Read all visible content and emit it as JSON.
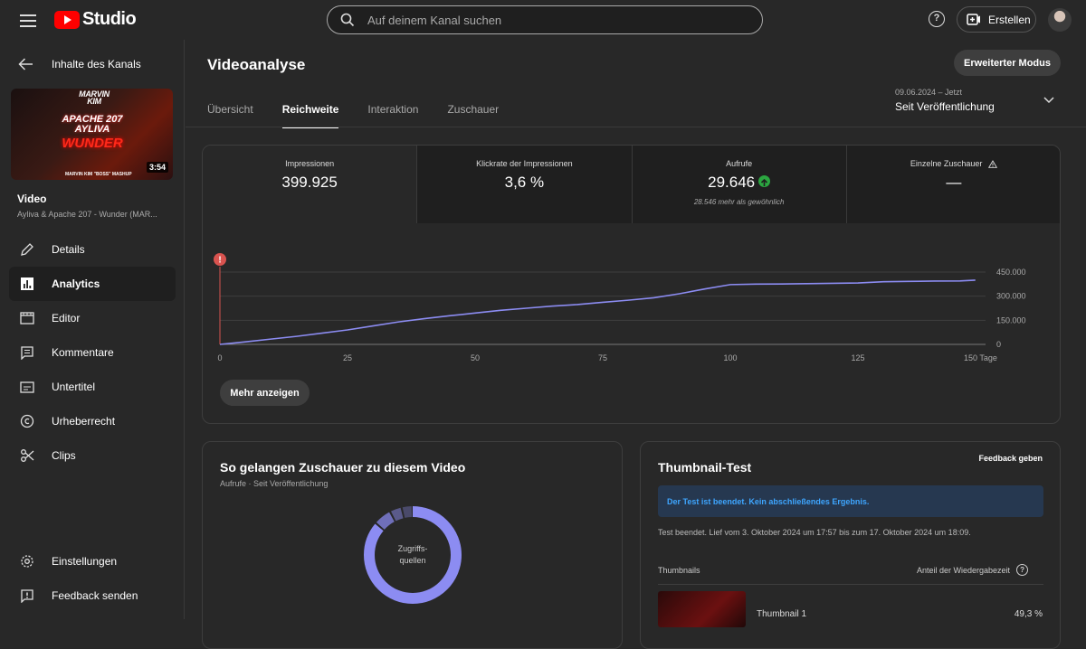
{
  "app": {
    "logo_text": "Studio",
    "search_placeholder": "Auf deinem Kanal suchen",
    "create_label": "Erstellen",
    "help_label": "?"
  },
  "sidebar": {
    "back_label": "Inhalte des Kanals",
    "thumbnail": {
      "line1": "MARVIN KIM",
      "line2": "APACHE 207 AYLIVA",
      "line3": "WUNDER",
      "line4": "MARVIN KIM \"BOSS\" MASHUP",
      "duration": "3:54"
    },
    "video_label": "Video",
    "video_title": "Ayliva & Apache 207 - Wunder (MAR...",
    "items": [
      {
        "label": "Details",
        "icon": "pencil-icon"
      },
      {
        "label": "Analytics",
        "icon": "analytics-icon",
        "active": true
      },
      {
        "label": "Editor",
        "icon": "editor-icon"
      },
      {
        "label": "Kommentare",
        "icon": "comment-icon"
      },
      {
        "label": "Untertitel",
        "icon": "subtitles-icon"
      },
      {
        "label": "Urheberrecht",
        "icon": "copyright-icon"
      },
      {
        "label": "Clips",
        "icon": "scissors-icon"
      }
    ],
    "bottom_items": [
      {
        "label": "Einstellungen",
        "icon": "gear-icon"
      },
      {
        "label": "Feedback senden",
        "icon": "feedback-icon"
      }
    ]
  },
  "main": {
    "title": "Videoanalyse",
    "advanced_button": "Erweiterter Modus",
    "tabs": [
      "Übersicht",
      "Reichweite",
      "Interaktion",
      "Zuschauer"
    ],
    "active_tab": "Reichweite",
    "date_range": {
      "range": "09.06.2024 – Jetzt",
      "label": "Seit Veröffentlichung"
    }
  },
  "metrics": [
    {
      "label": "Impressionen",
      "value": "399.925",
      "sub": ""
    },
    {
      "label": "Klickrate der Impressionen",
      "value": "3,6 %",
      "sub": ""
    },
    {
      "label": "Aufrufe",
      "value": "29.646",
      "sub": "28.546 mehr als gewöhnlich",
      "trend": "up"
    },
    {
      "label": "Einzelne Zuschauer",
      "value": "—",
      "sub": "",
      "warning": true
    }
  ],
  "show_more_label": "Mehr anzeigen",
  "chart_data": {
    "type": "line",
    "x": [
      0,
      5,
      10,
      15,
      20,
      25,
      30,
      35,
      40,
      45,
      50,
      55,
      60,
      65,
      70,
      75,
      80,
      85,
      90,
      95,
      100,
      105,
      110,
      115,
      120,
      125,
      130,
      135,
      140,
      145,
      148
    ],
    "y": [
      0,
      16000,
      33000,
      50000,
      70000,
      90000,
      115000,
      140000,
      160000,
      178000,
      195000,
      212000,
      225000,
      238000,
      248000,
      262000,
      275000,
      290000,
      315000,
      345000,
      372000,
      375000,
      376000,
      378000,
      380000,
      382000,
      390000,
      392000,
      394000,
      395000,
      399925
    ],
    "x_ticks": [
      "0",
      "25",
      "50",
      "75",
      "100",
      "125",
      "150 Tage"
    ],
    "y_ticks": [
      "450.000",
      "300.000",
      "150.000",
      "0"
    ],
    "xlim": [
      0,
      150
    ],
    "ylim": [
      0,
      450000
    ],
    "series_color": "#8c8cf2",
    "grid": true
  },
  "traffic_card": {
    "title": "So gelangen Zuschauer zu diesem Video",
    "subtitle": "Aufrufe · Seit Veröffentlichung",
    "donut_label_line1": "Zugriffs-",
    "donut_label_line2": "quellen"
  },
  "thumb_test": {
    "title": "Thumbnail-Test",
    "feedback": "Feedback geben",
    "info": "Der Test ist beendet. Kein abschließendes Ergebnis.",
    "summary": "Test beendet. Lief vom 3. Oktober 2024 um 17:57 bis zum 17. Oktober 2024 um 18:09.",
    "col_thumbnails": "Thumbnails",
    "col_share": "Anteil der Wiedergabezeit",
    "row1_name": "Thumbnail 1",
    "row1_value": "49,3 %"
  }
}
